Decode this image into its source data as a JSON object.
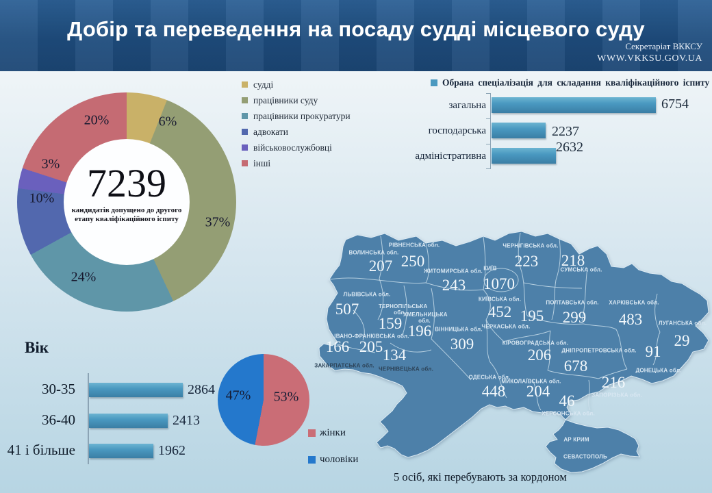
{
  "header": {
    "title": "Добір та переведення на посаду судді місцевого суду",
    "org": "Секретаріат ВККСУ",
    "site": "WWW.VKKSU.GOV.UA"
  },
  "colors": {
    "header_bg": "#1e4c7d",
    "map_fill": "#4d80a9",
    "bar_fill": "#4a99c0"
  },
  "chart_data": [
    {
      "id": "candidates-donut",
      "type": "pie",
      "subtype": "donut",
      "center_value": "7239",
      "center_caption": "кандидатів допущено до другого етапу кваліфікаційного іспиту",
      "categories": [
        "судді",
        "працівники суду",
        "працівники прокуратури",
        "адвокати",
        "військовослужбовці",
        "інші"
      ],
      "values_percent": [
        6,
        37,
        24,
        10,
        3,
        20
      ],
      "labels": [
        "6%",
        "37%",
        "24%",
        "10%",
        "3%",
        "20%"
      ],
      "colors": [
        "#c9b168",
        "#949e74",
        "#5f96a8",
        "#5268ae",
        "#6a60bd",
        "#c56b73"
      ],
      "legend_position": "right"
    },
    {
      "id": "specialization-bars",
      "type": "bar",
      "title": "Обрана спеціалізація для складання кваліфікаційного іспиту",
      "categories": [
        "загальна",
        "господарська",
        "адміністративна"
      ],
      "values": [
        6754,
        2237,
        2632
      ],
      "bar_color": "#4a99c0",
      "orientation": "horizontal",
      "grid": false
    },
    {
      "id": "age-bars",
      "type": "bar",
      "title": "Вік",
      "categories": [
        "30-35",
        "36-40",
        "41 і більше"
      ],
      "values": [
        2864,
        2413,
        1962
      ],
      "bar_color": "#4a99c0",
      "orientation": "horizontal",
      "grid": false
    },
    {
      "id": "gender-pie",
      "type": "pie",
      "categories": [
        "жінки",
        "чоловіки"
      ],
      "values_percent": [
        53,
        47
      ],
      "labels": [
        "53%",
        "47%"
      ],
      "colors": [
        "#ca6d76",
        "#2478cc"
      ],
      "legend_position": "right"
    }
  ],
  "map": {
    "title_note": "5 осіб, які перебувають за кордоном",
    "fill_color": "#4d80a9",
    "regions": [
      {
        "name": "ВОЛИНСЬКА обл.",
        "value": 207
      },
      {
        "name": "РІВНЕНСЬКА обл.",
        "value": 250
      },
      {
        "name": "ЖИТОМИРСЬКА обл.",
        "value": 243
      },
      {
        "name": "КИЇВ",
        "value": 1070
      },
      {
        "name": "КИЇВСЬКА обл.",
        "value": 452
      },
      {
        "name": "ЧЕРНІГІВСЬКА обл.",
        "value": 223
      },
      {
        "name": "СУМСЬКА обл.",
        "value": 218
      },
      {
        "name": "ЛЬВІВСЬКА обл.",
        "value": 507
      },
      {
        "name": "ТЕРНОПІЛЬСЬКА обл.",
        "value": 159
      },
      {
        "name": "ХМЕЛЬНИЦЬКА обл.",
        "value": 196
      },
      {
        "name": "ВІННИЦЬКА обл.",
        "value": 309
      },
      {
        "name": "ІВАНО-ФРАНКІВСЬКА обл.",
        "value": 205
      },
      {
        "name": "ЗАКАРПАТСЬКА обл.",
        "value": 166
      },
      {
        "name": "ЧЕРНІВЕЦЬКА обл.",
        "value": 134
      },
      {
        "name": "ЧЕРКАСЬКА обл.",
        "value": 195
      },
      {
        "name": "ПОЛТАВСЬКА обл.",
        "value": 299
      },
      {
        "name": "ХАРКІВСЬКА обл.",
        "value": 483
      },
      {
        "name": "ЛУГАНСЬКА обл.",
        "value": 29
      },
      {
        "name": "КІРОВОГРАДСЬКА обл.",
        "value": 206
      },
      {
        "name": "ДНІПРОПЕТРОВСЬКА обл.",
        "value": 678
      },
      {
        "name": "ДОНЕЦЬКА обл.",
        "value": 91
      },
      {
        "name": "ОДЕСЬКА обл.",
        "value": 448
      },
      {
        "name": "МИКОЛАЇВСЬКА обл.",
        "value": 204
      },
      {
        "name": "ХЕРСОНСЬКА обл.",
        "value": 46
      },
      {
        "name": "ЗАПОРІЗЬКА обл.",
        "value": 216
      },
      {
        "name": "АР КРИМ",
        "value": null
      },
      {
        "name": "СЕВАСТОПОЛЬ",
        "value": null
      }
    ]
  }
}
